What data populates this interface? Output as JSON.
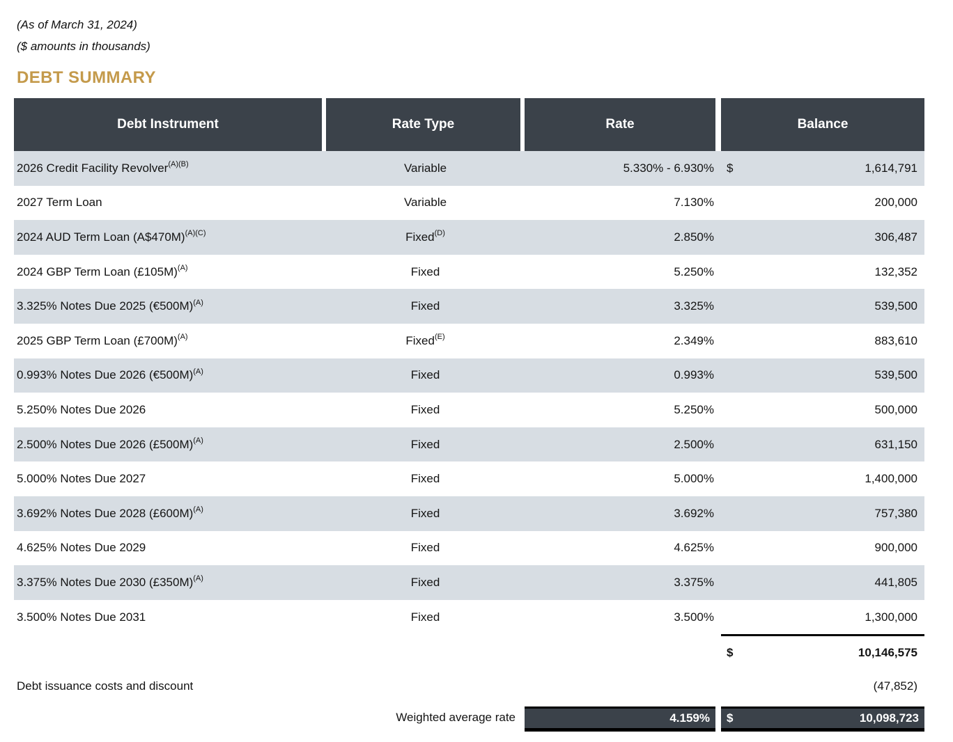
{
  "meta": {
    "as_of_line": "(As of March 31, 2024)",
    "units_line": "($ amounts in thousands)"
  },
  "title": "DEBT SUMMARY",
  "colors": {
    "header_bg": "#3b424a",
    "stripe_bg": "#d7dde3",
    "title_gold": "#c49a4b",
    "total_bar_bg": "#3b424a"
  },
  "table": {
    "columns": {
      "instrument": "Debt Instrument",
      "rate_type": "Rate Type",
      "rate": "Rate",
      "balance": "Balance"
    },
    "rows": [
      {
        "instrument": "2026 Credit Facility Revolver",
        "instrument_sup": "(A)(B)",
        "rate_type": "Variable",
        "rate_type_sup": "",
        "rate": "5.330% - 6.930%",
        "dollar": "$",
        "balance": "1,614,791"
      },
      {
        "instrument": "2027 Term Loan",
        "instrument_sup": "",
        "rate_type": "Variable",
        "rate_type_sup": "",
        "rate": "7.130%",
        "dollar": "",
        "balance": "200,000"
      },
      {
        "instrument": "2024 AUD Term Loan (A$470M)",
        "instrument_sup": "(A)(C)",
        "rate_type": "Fixed",
        "rate_type_sup": "(D)",
        "rate": "2.850%",
        "dollar": "",
        "balance": "306,487"
      },
      {
        "instrument": "2024 GBP Term Loan (£105M)",
        "instrument_sup": "(A)",
        "rate_type": "Fixed",
        "rate_type_sup": "",
        "rate": "5.250%",
        "dollar": "",
        "balance": "132,352"
      },
      {
        "instrument": "3.325% Notes Due 2025 (€500M)",
        "instrument_sup": "(A)",
        "rate_type": "Fixed",
        "rate_type_sup": "",
        "rate": "3.325%",
        "dollar": "",
        "balance": "539,500"
      },
      {
        "instrument": "2025 GBP Term Loan (£700M)",
        "instrument_sup": "(A)",
        "rate_type": "Fixed",
        "rate_type_sup": "(E)",
        "rate": "2.349%",
        "dollar": "",
        "balance": "883,610"
      },
      {
        "instrument": "0.993% Notes Due 2026 (€500M)",
        "instrument_sup": "(A)",
        "rate_type": "Fixed",
        "rate_type_sup": "",
        "rate": "0.993%",
        "dollar": "",
        "balance": "539,500"
      },
      {
        "instrument": "5.250% Notes Due 2026",
        "instrument_sup": "",
        "rate_type": "Fixed",
        "rate_type_sup": "",
        "rate": "5.250%",
        "dollar": "",
        "balance": "500,000"
      },
      {
        "instrument": "2.500% Notes Due 2026 (£500M)",
        "instrument_sup": "(A)",
        "rate_type": "Fixed",
        "rate_type_sup": "",
        "rate": "2.500%",
        "dollar": "",
        "balance": "631,150"
      },
      {
        "instrument": "5.000% Notes Due 2027",
        "instrument_sup": "",
        "rate_type": "Fixed",
        "rate_type_sup": "",
        "rate": "5.000%",
        "dollar": "",
        "balance": "1,400,000"
      },
      {
        "instrument": "3.692% Notes Due 2028 (£600M)",
        "instrument_sup": "(A)",
        "rate_type": "Fixed",
        "rate_type_sup": "",
        "rate": "3.692%",
        "dollar": "",
        "balance": "757,380"
      },
      {
        "instrument": "4.625% Notes Due 2029",
        "instrument_sup": "",
        "rate_type": "Fixed",
        "rate_type_sup": "",
        "rate": "4.625%",
        "dollar": "",
        "balance": "900,000"
      },
      {
        "instrument": "3.375% Notes Due 2030 (£350M)",
        "instrument_sup": "(A)",
        "rate_type": "Fixed",
        "rate_type_sup": "",
        "rate": "3.375%",
        "dollar": "",
        "balance": "441,805"
      },
      {
        "instrument": "3.500% Notes Due 2031",
        "instrument_sup": "",
        "rate_type": "Fixed",
        "rate_type_sup": "",
        "rate": "3.500%",
        "dollar": "",
        "balance": "1,300,000"
      }
    ],
    "subtotal": {
      "dollar": "$",
      "balance": "10,146,575"
    },
    "adjustment": {
      "label": "Debt issuance costs and discount",
      "balance": "(47,852)"
    },
    "weighted": {
      "label": "Weighted average rate",
      "rate": "4.159%",
      "dollar": "$",
      "balance": "10,098,723"
    }
  }
}
